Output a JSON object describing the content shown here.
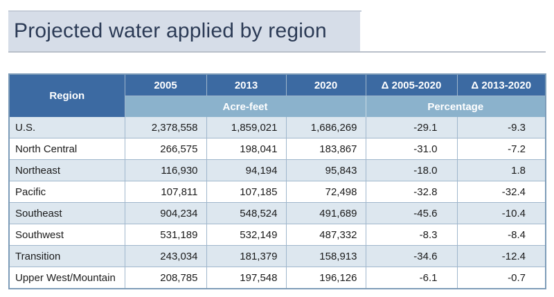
{
  "title": "Projected water applied by region",
  "table": {
    "region_header": "Region",
    "years": [
      "2005",
      "2013",
      "2020"
    ],
    "changes": [
      "Δ 2005-2020",
      "Δ 2013-2020"
    ],
    "unit_acre": "Acre-feet",
    "unit_pct": "Percentage",
    "rows": [
      [
        "U.S.",
        "2,378,558",
        "1,859,021",
        "1,686,269",
        "-29.1",
        "-9.3"
      ],
      [
        "North Central",
        "266,575",
        "198,041",
        "183,867",
        "-31.0",
        "-7.2"
      ],
      [
        "Northeast",
        "116,930",
        "94,194",
        "95,843",
        "-18.0",
        "1.8"
      ],
      [
        "Pacific",
        "107,811",
        "107,185",
        "72,498",
        "-32.8",
        "-32.4"
      ],
      [
        "Southeast",
        "904,234",
        "548,524",
        "491,689",
        "-45.6",
        "-10.4"
      ],
      [
        "Southwest",
        "531,189",
        "532,149",
        "487,332",
        "-8.3",
        "-8.4"
      ],
      [
        "Transition",
        "243,034",
        "181,379",
        "158,913",
        "-34.6",
        "-12.4"
      ],
      [
        "Upper West/Mountain",
        "208,785",
        "197,548",
        "196,126",
        "-6.1",
        "-0.7"
      ]
    ]
  },
  "colors": {
    "header_dark": "#3c6aa2",
    "header_light": "#8bb2cc",
    "row_tint": "#dde7ef",
    "title_band": "#d6dde8"
  }
}
